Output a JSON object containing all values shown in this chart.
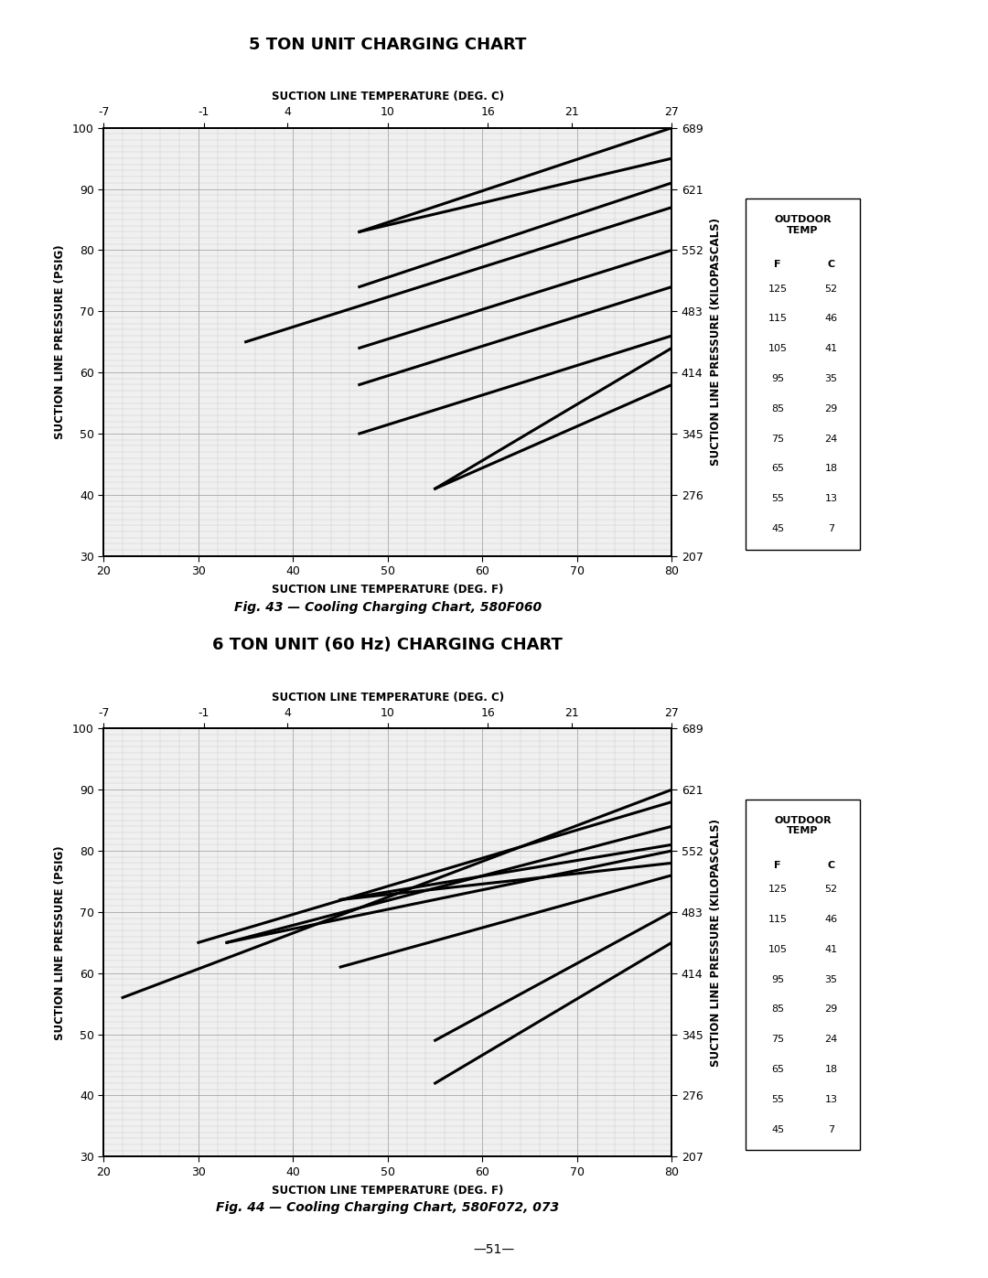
{
  "chart1": {
    "title": "5 TON UNIT CHARGING CHART",
    "top_xlabel": "SUCTION LINE TEMPERATURE (DEG. C)",
    "bottom_xlabel": "SUCTION LINE TEMPERATURE (DEG. F)",
    "left_ylabel": "SUCTION LINE PRESSURE (PSIG)",
    "right_ylabel": "SUCTION LINE PRESSURE (KILOPASCALS)",
    "caption": "Fig. 43 — Cooling Charging Chart, 580F060",
    "xlim_F": [
      20,
      80
    ],
    "ylim_PSIG": [
      30,
      100
    ],
    "top_ticks_C": [
      -7,
      -1,
      4,
      10,
      16,
      21,
      27
    ],
    "right_ticks_kPa": [
      207,
      276,
      345,
      414,
      483,
      552,
      621,
      689
    ],
    "right_ticks_psig": [
      30,
      40,
      50,
      60,
      70,
      80,
      90,
      100
    ],
    "lines": [
      {
        "x": [
          47,
          80
        ],
        "y": [
          83,
          100
        ]
      },
      {
        "x": [
          47,
          80
        ],
        "y": [
          83,
          95
        ]
      },
      {
        "x": [
          47,
          80
        ],
        "y": [
          74,
          91
        ]
      },
      {
        "x": [
          35,
          80
        ],
        "y": [
          65,
          87
        ]
      },
      {
        "x": [
          47,
          80
        ],
        "y": [
          64,
          80
        ]
      },
      {
        "x": [
          47,
          80
        ],
        "y": [
          58,
          74
        ]
      },
      {
        "x": [
          47,
          80
        ],
        "y": [
          50,
          66
        ]
      },
      {
        "x": [
          55,
          80
        ],
        "y": [
          41,
          64
        ]
      },
      {
        "x": [
          55,
          80
        ],
        "y": [
          41,
          58
        ]
      }
    ]
  },
  "chart2": {
    "title": "6 TON UNIT (60 Hz) CHARGING CHART",
    "top_xlabel": "SUCTION LINE TEMPERATURE (DEG. C)",
    "bottom_xlabel": "SUCTION LINE TEMPERATURE (DEG. F)",
    "left_ylabel": "SUCTION LINE PRESSURE (PSIG)",
    "right_ylabel": "SUCTION LINE PRESSURE (KILOPASCALS)",
    "caption": "Fig. 44 — Cooling Charging Chart, 580F072, 073",
    "xlim_F": [
      20,
      80
    ],
    "ylim_PSIG": [
      30,
      100
    ],
    "top_ticks_C": [
      -7,
      -1,
      4,
      10,
      16,
      21,
      27
    ],
    "right_ticks_kPa": [
      207,
      276,
      345,
      414,
      483,
      552,
      621,
      689
    ],
    "right_ticks_psig": [
      30,
      40,
      50,
      60,
      70,
      80,
      90,
      100
    ],
    "lines": [
      {
        "x": [
          22,
          80
        ],
        "y": [
          56,
          90
        ]
      },
      {
        "x": [
          30,
          80
        ],
        "y": [
          65,
          88
        ]
      },
      {
        "x": [
          33,
          80
        ],
        "y": [
          65,
          84
        ]
      },
      {
        "x": [
          33,
          80
        ],
        "y": [
          65,
          80
        ]
      },
      {
        "x": [
          45,
          80
        ],
        "y": [
          72,
          81
        ]
      },
      {
        "x": [
          45,
          80
        ],
        "y": [
          72,
          78
        ]
      },
      {
        "x": [
          45,
          80
        ],
        "y": [
          61,
          76
        ]
      },
      {
        "x": [
          55,
          80
        ],
        "y": [
          49,
          70
        ]
      },
      {
        "x": [
          55,
          80
        ],
        "y": [
          42,
          65
        ]
      }
    ]
  },
  "outdoor_temp_F": [
    125,
    115,
    105,
    95,
    85,
    75,
    65,
    55,
    45
  ],
  "outdoor_temp_C": [
    52,
    46,
    41,
    35,
    29,
    24,
    18,
    13,
    7
  ],
  "background_color": "#ffffff",
  "grid_minor_color": "#c8c8c8",
  "grid_major_color": "#999999",
  "line_color": "#000000",
  "page_number": "51"
}
